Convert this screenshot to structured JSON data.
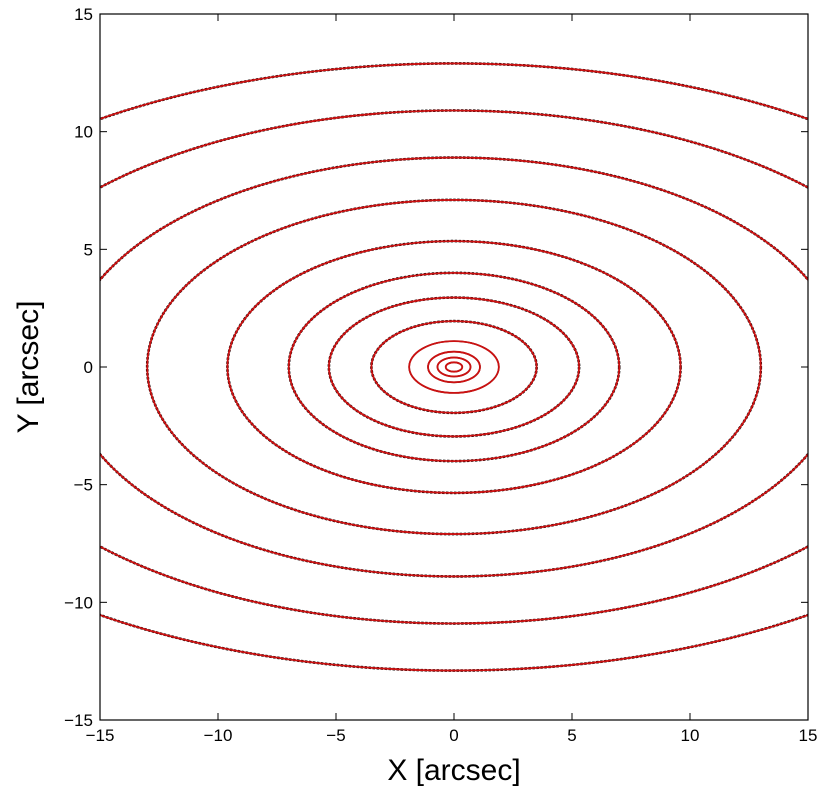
{
  "chart_data": {
    "type": "line",
    "title": "",
    "xlabel": "X [arcsec]",
    "ylabel": "Y [arcsec]",
    "xlim": [
      -15,
      15
    ],
    "ylim": [
      -15,
      15
    ],
    "xticks": [
      -15,
      -10,
      -5,
      0,
      5,
      10,
      15
    ],
    "yticks": [
      -15,
      -10,
      -5,
      0,
      5,
      10,
      15
    ],
    "xtick_labels": [
      "−15",
      "−10",
      "−5",
      "0",
      "5",
      "10",
      "15"
    ],
    "ytick_labels": [
      "−15",
      "−10",
      "−5",
      "0",
      "5",
      "10",
      "15"
    ],
    "grid": false,
    "legend": "none",
    "background": "isophote contour map (black)",
    "series": [
      {
        "kind": "fitted ellipse isophotes",
        "color": "#cc1111",
        "center": [
          0,
          0
        ],
        "ellipses": [
          {
            "a": 0.35,
            "b": 0.2
          },
          {
            "a": 0.7,
            "b": 0.4
          },
          {
            "a": 1.1,
            "b": 0.65
          },
          {
            "a": 1.9,
            "b": 1.1
          },
          {
            "a": 3.5,
            "b": 1.95
          },
          {
            "a": 5.3,
            "b": 2.95
          },
          {
            "a": 7.0,
            "b": 4.0
          },
          {
            "a": 9.6,
            "b": 5.35
          },
          {
            "a": 13.0,
            "b": 7.1
          },
          {
            "a": 16.5,
            "b": 8.9
          },
          {
            "a": 21.0,
            "b": 10.9
          },
          {
            "a": 26.0,
            "b": 12.9
          }
        ]
      }
    ],
    "isophotes": {
      "kind": "observed isophote contours",
      "color": "#000000",
      "center": [
        0,
        0
      ],
      "ellipses": [
        {
          "a": 0.35,
          "b": 0.2
        },
        {
          "a": 0.7,
          "b": 0.4
        },
        {
          "a": 1.1,
          "b": 0.65
        },
        {
          "a": 1.9,
          "b": 1.1
        },
        {
          "a": 3.5,
          "b": 1.95
        },
        {
          "a": 5.3,
          "b": 2.95
        },
        {
          "a": 7.0,
          "b": 4.0
        },
        {
          "a": 9.6,
          "b": 5.35
        },
        {
          "a": 13.0,
          "b": 7.1
        },
        {
          "a": 16.5,
          "b": 8.9
        },
        {
          "a": 21.0,
          "b": 10.9
        },
        {
          "a": 26.0,
          "b": 12.9
        }
      ]
    }
  }
}
